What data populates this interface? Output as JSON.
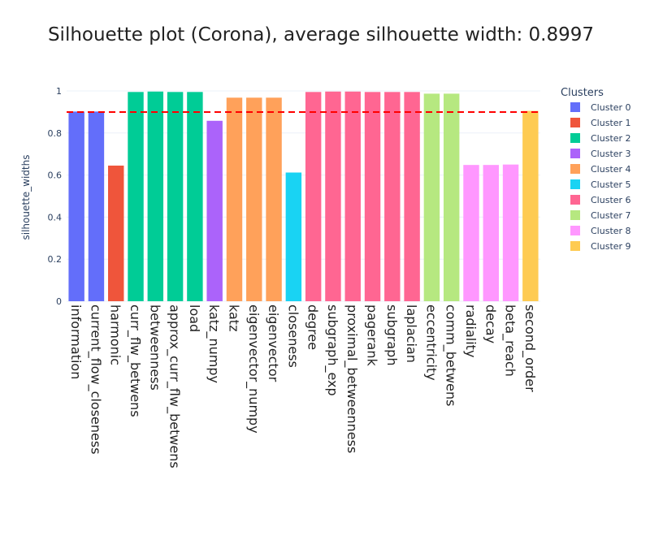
{
  "chart_data": {
    "type": "bar",
    "title": "Silhouette plot (Corona), average silhouette width: 0.8997",
    "xlabel": "",
    "ylabel": "silhouette_widths",
    "ylim": [
      0,
      1
    ],
    "yticks": [
      "0",
      "0.2",
      "0.4",
      "0.6",
      "0.8",
      "1"
    ],
    "average_line": {
      "value": 0.8997,
      "color": "#ff0000",
      "style": "dashed"
    },
    "legend": {
      "title": "Clusters",
      "placement": "right"
    },
    "clusters": [
      {
        "name": "Cluster 0",
        "color": "#636efa"
      },
      {
        "name": "Cluster 1",
        "color": "#ef553b"
      },
      {
        "name": "Cluster 2",
        "color": "#00cc96"
      },
      {
        "name": "Cluster 3",
        "color": "#ab63fa"
      },
      {
        "name": "Cluster 4",
        "color": "#ffa15a"
      },
      {
        "name": "Cluster 5",
        "color": "#19d3f3"
      },
      {
        "name": "Cluster 6",
        "color": "#ff6692"
      },
      {
        "name": "Cluster 7",
        "color": "#b6e880"
      },
      {
        "name": "Cluster 8",
        "color": "#ff97ff"
      },
      {
        "name": "Cluster 9",
        "color": "#fecb52"
      }
    ],
    "categories": [
      "information",
      "current_flow_closeness",
      "harmonic",
      "curr_flw_betwens",
      "betweenness",
      "approx_curr_flw_betwens",
      "load",
      "katz_numpy",
      "katz",
      "eigenvector_numpy",
      "eigenvector",
      "closeness",
      "degree",
      "subgraph_exp",
      "proximal_betweenness",
      "pagerank",
      "subgraph",
      "laplacian",
      "eccentricity",
      "comm_betwens",
      "radiality",
      "decay",
      "beta_reach",
      "second_order"
    ],
    "values": [
      0.902,
      0.902,
      0.645,
      0.995,
      0.997,
      0.995,
      0.995,
      0.858,
      0.968,
      0.968,
      0.968,
      0.612,
      0.995,
      0.997,
      0.997,
      0.995,
      0.995,
      0.995,
      0.987,
      0.987,
      0.648,
      0.648,
      0.65,
      0.905
    ],
    "cluster_of_bar": [
      0,
      0,
      1,
      2,
      2,
      2,
      2,
      3,
      4,
      4,
      4,
      5,
      6,
      6,
      6,
      6,
      6,
      6,
      7,
      7,
      8,
      8,
      8,
      9
    ]
  }
}
